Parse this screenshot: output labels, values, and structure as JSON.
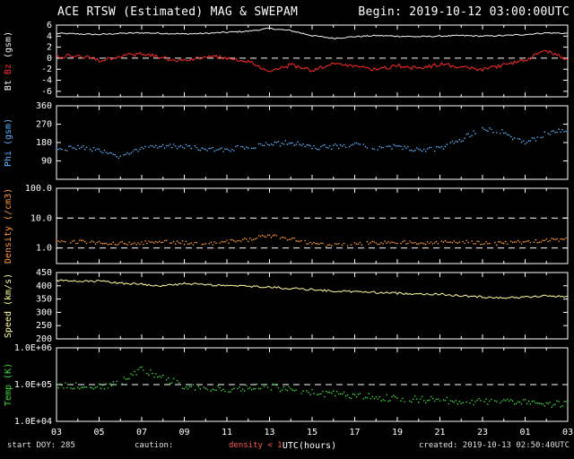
{
  "header": {
    "title": "ACE RTSW (Estimated) MAG & SWEPAM",
    "begin": "Begin: 2019-10-12 03:00:00UTC"
  },
  "footer": {
    "start_doy": "start DOY: 285",
    "caution_label": "caution:",
    "caution_value": "density < 1",
    "xaxis_label": "UTC(hours)",
    "created": "created: 2019-10-13 02:50:40UTC"
  },
  "colors": {
    "background": "#000000",
    "axis": "#ffffff",
    "bt": "#f5f5f5",
    "bz": "#ff2a2a",
    "phi": "#5fb2ff",
    "density": "#ff9a3c",
    "speed": "#ffffa0",
    "temp": "#3ddc3d",
    "caution": "#ff5555"
  },
  "chart_data": {
    "type": "line",
    "title": "ACE RTSW (Estimated) MAG & SWEPAM",
    "xlabel": "UTC(hours)",
    "x_start_hour": 3,
    "x_step_hours": 1,
    "x_range_hours": [
      3,
      27
    ],
    "x_ticks": [
      {
        "h": 3,
        "label": "03"
      },
      {
        "h": 5,
        "label": "05"
      },
      {
        "h": 7,
        "label": "07"
      },
      {
        "h": 9,
        "label": "09"
      },
      {
        "h": 11,
        "label": "11"
      },
      {
        "h": 13,
        "label": "13"
      },
      {
        "h": 15,
        "label": "15"
      },
      {
        "h": 17,
        "label": "17"
      },
      {
        "h": 19,
        "label": "19"
      },
      {
        "h": 21,
        "label": "21"
      },
      {
        "h": 23,
        "label": "23"
      },
      {
        "h": 25,
        "label": "01"
      },
      {
        "h": 27,
        "label": "03"
      }
    ],
    "panels": [
      {
        "id": "mag",
        "ylabel_segments": [
          {
            "text": "Bt ",
            "color": "#f5f5f5"
          },
          {
            "text": "Bz ",
            "color": "#ff2a2a"
          },
          {
            "text": "(gsm)",
            "color": "#f5f5f5"
          }
        ],
        "scale": "linear",
        "ylim": [
          -7,
          6
        ],
        "yticks": [
          {
            "v": 6,
            "label": "6"
          },
          {
            "v": 4,
            "label": "4"
          },
          {
            "v": 2,
            "label": "2"
          },
          {
            "v": 0,
            "label": "0"
          },
          {
            "v": -2,
            "label": "-2"
          },
          {
            "v": -4,
            "label": "-4"
          },
          {
            "v": -6,
            "label": "-6"
          }
        ],
        "dashed": [
          0
        ],
        "series": [
          {
            "name": "Bt",
            "color": "#f5f5f5",
            "style": "line",
            "noise": 0.12,
            "values": [
              4.5,
              4.4,
              4.3,
              4.5,
              4.6,
              4.5,
              4.4,
              4.5,
              4.7,
              4.9,
              5.4,
              5.0,
              4.1,
              3.6,
              3.9,
              4.1,
              4.0,
              3.9,
              4.0,
              4.1,
              4.0,
              4.1,
              4.3,
              4.6,
              4.5
            ]
          },
          {
            "name": "Bz",
            "color": "#ff2a2a",
            "style": "line",
            "noise": 0.35,
            "values": [
              0.3,
              0.5,
              -0.4,
              0.4,
              0.8,
              0.0,
              -0.5,
              0.4,
              0.0,
              -0.6,
              -2.6,
              -1.2,
              -2.2,
              -1.0,
              -1.6,
              -2.1,
              -1.3,
              -1.9,
              -1.1,
              -1.6,
              -2.1,
              -1.2,
              -0.4,
              1.4,
              -0.3
            ]
          }
        ]
      },
      {
        "id": "phi",
        "ylabel_segments": [
          {
            "text": "Phi (gsm)",
            "color": "#5fb2ff"
          }
        ],
        "scale": "linear",
        "ylim": [
          0,
          360
        ],
        "yticks": [
          {
            "v": 360,
            "label": "360"
          },
          {
            "v": 270,
            "label": "270"
          },
          {
            "v": 180,
            "label": "180"
          },
          {
            "v": 90,
            "label": "90"
          }
        ],
        "dashed": [],
        "series": [
          {
            "name": "Phi",
            "color": "#5fb2ff",
            "style": "scatter",
            "noise": 12,
            "values": [
              150,
              155,
              140,
              105,
              150,
              165,
              160,
              150,
              145,
              160,
              170,
              180,
              155,
              160,
              170,
              150,
              160,
              145,
              150,
              195,
              250,
              230,
              175,
              225,
              245
            ]
          }
        ]
      },
      {
        "id": "density",
        "ylabel_segments": [
          {
            "text": "Density (/cm3)",
            "color": "#ff9a3c"
          }
        ],
        "scale": "log",
        "ylim": [
          0.3,
          100
        ],
        "yticks": [
          {
            "v": 100,
            "label": "100.0"
          },
          {
            "v": 10,
            "label": "10.0"
          },
          {
            "v": 1,
            "label": "1.0"
          }
        ],
        "dashed": [
          10,
          1
        ],
        "series": [
          {
            "name": "Density",
            "color": "#ff9a3c",
            "style": "scatter",
            "noise": 0.06,
            "values": [
              1.7,
              1.6,
              1.5,
              1.4,
              1.5,
              1.6,
              1.5,
              1.4,
              1.6,
              1.9,
              2.6,
              2.0,
              1.4,
              1.2,
              1.3,
              1.5,
              1.6,
              1.4,
              1.5,
              1.6,
              1.5,
              1.4,
              1.6,
              1.8,
              2.0
            ]
          }
        ]
      },
      {
        "id": "speed",
        "ylabel_segments": [
          {
            "text": "Speed (km/s)",
            "color": "#ffffa0"
          }
        ],
        "scale": "linear",
        "ylim": [
          200,
          450
        ],
        "yticks": [
          {
            "v": 450,
            "label": "450"
          },
          {
            "v": 400,
            "label": "400"
          },
          {
            "v": 350,
            "label": "350"
          },
          {
            "v": 300,
            "label": "300"
          },
          {
            "v": 250,
            "label": "250"
          },
          {
            "v": 200,
            "label": "200"
          }
        ],
        "dashed": [],
        "series": [
          {
            "name": "Speed",
            "color": "#ffffa0",
            "style": "line",
            "noise": 4,
            "values": [
              420,
              416,
              418,
              410,
              406,
              400,
              408,
              404,
              400,
              398,
              395,
              390,
              386,
              380,
              378,
              375,
              372,
              370,
              368,
              362,
              358,
              355,
              357,
              362,
              360
            ]
          }
        ]
      },
      {
        "id": "temp",
        "ylabel_segments": [
          {
            "text": "Temp (K)",
            "color": "#3ddc3d"
          }
        ],
        "scale": "log",
        "ylim": [
          10000,
          1000000
        ],
        "yticks": [
          {
            "v": 1000000,
            "label": "1.0E+06"
          },
          {
            "v": 100000,
            "label": "1.0E+05"
          },
          {
            "v": 10000,
            "label": "1.0E+04"
          }
        ],
        "dashed": [
          100000
        ],
        "series": [
          {
            "name": "Temp",
            "color": "#3ddc3d",
            "style": "scatter",
            "noise": 0.09,
            "values": [
              100000,
              90000,
              85000,
              110000,
              250000,
              150000,
              90000,
              80000,
              75000,
              80000,
              90000,
              70000,
              60000,
              55000,
              50000,
              45000,
              42000,
              40000,
              38000,
              35000,
              34000,
              33000,
              32000,
              30000,
              30000
            ]
          }
        ]
      }
    ]
  }
}
